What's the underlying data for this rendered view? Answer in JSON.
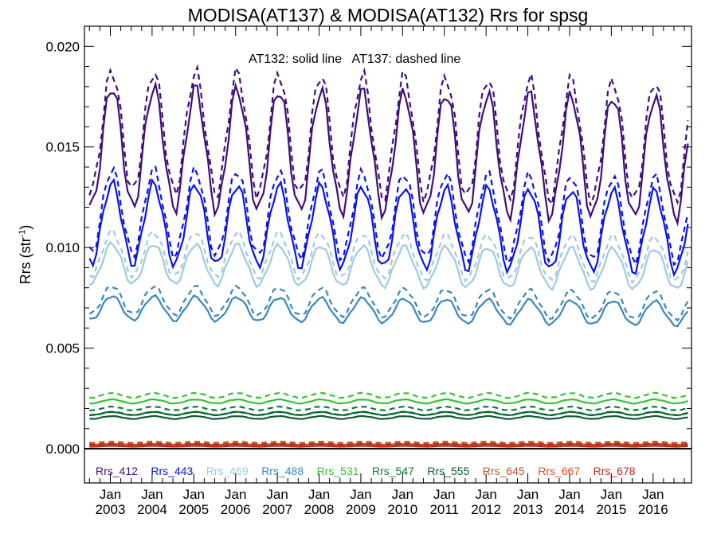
{
  "chart_data": {
    "type": "line",
    "title": "MODISA(AT137) & MODISA(AT132)  Rrs for spsg",
    "ylabel": "Rrs (str",
    "ylabel_sup": "-1",
    "ylabel_close": ")",
    "xlabel": "",
    "annotation": "AT132: solid line   AT137: dashed line",
    "ylim": [
      -0.0017,
      0.021
    ],
    "xlim": [
      2002.38,
      2016.92
    ],
    "y_ticks": [
      {
        "value": 0.0,
        "label": "0.000"
      },
      {
        "value": 0.005,
        "label": "0.005"
      },
      {
        "value": 0.01,
        "label": "0.010"
      },
      {
        "value": 0.015,
        "label": "0.015"
      },
      {
        "value": 0.02,
        "label": "0.020"
      }
    ],
    "x_ticks": [
      {
        "value": 2003.0,
        "month": "Jan",
        "year": "2003"
      },
      {
        "value": 2004.0,
        "month": "Jan",
        "year": "2004"
      },
      {
        "value": 2005.0,
        "month": "Jan",
        "year": "2005"
      },
      {
        "value": 2006.0,
        "month": "Jan",
        "year": "2006"
      },
      {
        "value": 2007.0,
        "month": "Jan",
        "year": "2007"
      },
      {
        "value": 2008.0,
        "month": "Jan",
        "year": "2008"
      },
      {
        "value": 2009.0,
        "month": "Jan",
        "year": "2009"
      },
      {
        "value": 2010.0,
        "month": "Jan",
        "year": "2010"
      },
      {
        "value": 2011.0,
        "month": "Jan",
        "year": "2011"
      },
      {
        "value": 2012.0,
        "month": "Jan",
        "year": "2012"
      },
      {
        "value": 2013.0,
        "month": "Jan",
        "year": "2013"
      },
      {
        "value": 2014.0,
        "month": "Jan",
        "year": "2014"
      },
      {
        "value": 2015.0,
        "month": "Jan",
        "year": "2015"
      },
      {
        "value": 2016.0,
        "month": "Jan",
        "year": "2016"
      }
    ],
    "x_start": 2002.5,
    "n_months": 173,
    "peak_phase": 0.04,
    "grid": false,
    "legend_position": "bottom",
    "zero_line": true,
    "series": [
      {
        "name": "Rrs_412",
        "color": "#3f0f7a",
        "solid": {
          "mean": 0.015,
          "amp": 0.003,
          "trend": -4e-05
        },
        "dashed": {
          "mean": 0.0158,
          "amp": 0.003,
          "trend": -4e-05
        }
      },
      {
        "name": "Rrs_443",
        "color": "#0a14e6",
        "solid": {
          "mean": 0.0112,
          "amp": 0.002,
          "trend": -3e-05
        },
        "dashed": {
          "mean": 0.0118,
          "amp": 0.0021,
          "trend": -3e-05
        }
      },
      {
        "name": "Rrs_469",
        "color": "#9ecae1",
        "solid": {
          "mean": 0.0092,
          "amp": 0.001,
          "trend": -2e-05
        },
        "dashed": {
          "mean": 0.0097,
          "amp": 0.0011,
          "trend": -2e-05
        }
      },
      {
        "name": "Rrs_488",
        "color": "#3a87bd",
        "solid": {
          "mean": 0.007,
          "amp": 0.0006,
          "trend": -2e-05
        },
        "dashed": {
          "mean": 0.0074,
          "amp": 0.0007,
          "trend": -2e-05
        }
      },
      {
        "name": "Rrs_531",
        "color": "#35c235",
        "solid": {
          "mean": 0.00235,
          "amp": 0.0001,
          "trend": 0.0
        },
        "dashed": {
          "mean": 0.00265,
          "amp": 0.00012,
          "trend": 0.0
        }
      },
      {
        "name": "Rrs_547",
        "color": "#0a7a35",
        "solid": {
          "mean": 0.00175,
          "amp": 8e-05,
          "trend": 0.0
        },
        "dashed": {
          "mean": 0.002,
          "amp": 9e-05,
          "trend": 0.0
        }
      },
      {
        "name": "Rrs_555",
        "color": "#0f5e30",
        "solid": {
          "mean": 0.00155,
          "amp": 7e-05,
          "trend": 0.0
        },
        "dashed": {
          "mean": 0.00175,
          "amp": 8e-05,
          "trend": 0.0
        }
      },
      {
        "name": "Rrs_645",
        "color": "#b05a2a",
        "solid": {
          "mean": 0.00022,
          "amp": 2e-05,
          "trend": 0.0
        },
        "dashed": {
          "mean": 0.00032,
          "amp": 3e-05,
          "trend": 0.0
        }
      },
      {
        "name": "Rrs_667",
        "color": "#e0501e",
        "solid": {
          "mean": 0.00016,
          "amp": 2e-05,
          "trend": 0.0
        },
        "dashed": {
          "mean": 0.00026,
          "amp": 2e-05,
          "trend": 0.0
        }
      },
      {
        "name": "Rrs_678",
        "color": "#c0281e",
        "solid": {
          "mean": 0.00012,
          "amp": 2e-05,
          "trend": 0.0
        },
        "dashed": {
          "mean": 0.00022,
          "amp": 2e-05,
          "trend": 0.0
        }
      }
    ]
  }
}
